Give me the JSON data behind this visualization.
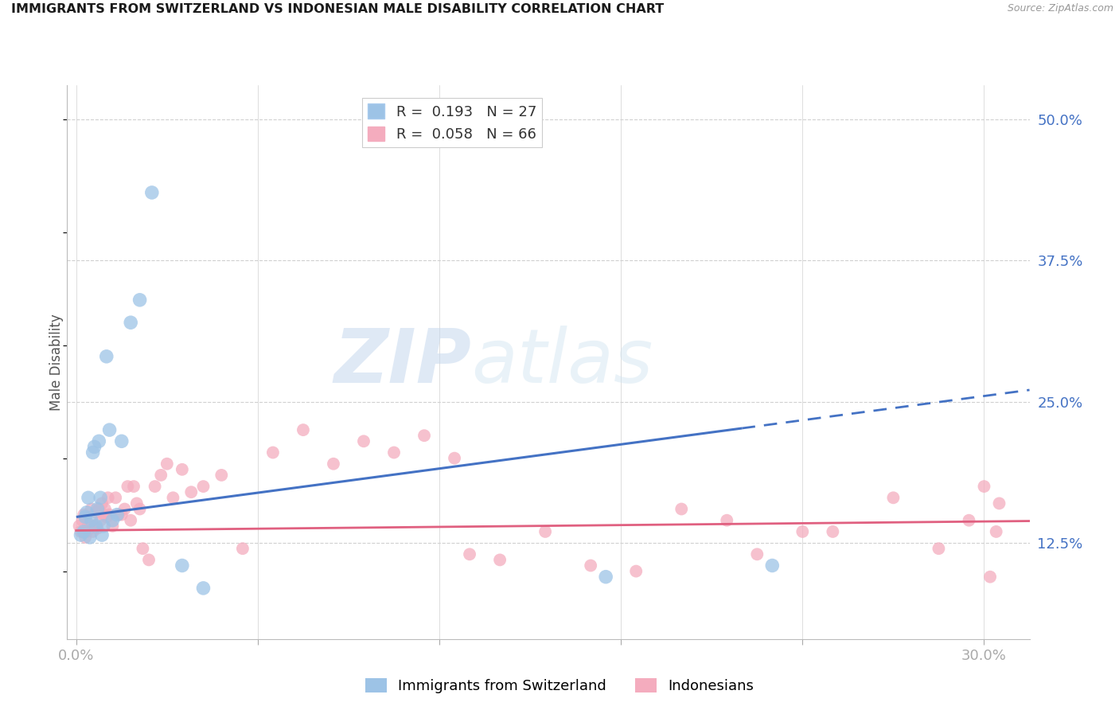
{
  "title": "IMMIGRANTS FROM SWITZERLAND VS INDONESIAN MALE DISABILITY CORRELATION CHART",
  "source": "Source: ZipAtlas.com",
  "ylabel": "Male Disability",
  "x_ticks": [
    0.0,
    6.0,
    12.0,
    18.0,
    24.0,
    30.0
  ],
  "y_ticks_right": [
    12.5,
    25.0,
    37.5,
    50.0
  ],
  "y_min": 4.0,
  "y_max": 53.0,
  "x_min": -0.3,
  "x_max": 31.5,
  "legend_R1": "R =  0.193",
  "legend_N1": "N = 27",
  "legend_R2": "R =  0.058",
  "legend_N2": "N = 66",
  "color_blue": "#9DC3E6",
  "color_blue_line": "#4472C4",
  "color_pink": "#F4ACBE",
  "color_pink_line": "#E06080",
  "color_axis_label": "#4472C4",
  "color_grid": "#D0D0D0",
  "watermark_zip": "ZIP",
  "watermark_atlas": "atlas",
  "blue_line_x0": 0.0,
  "blue_line_y0": 14.8,
  "blue_line_x1": 30.0,
  "blue_line_y1": 25.5,
  "pink_line_x0": 0.0,
  "pink_line_y0": 13.6,
  "pink_line_x1": 30.0,
  "pink_line_y1": 14.4,
  "swiss_x": [
    0.15,
    0.25,
    0.3,
    0.35,
    0.4,
    0.45,
    0.5,
    0.55,
    0.6,
    0.65,
    0.7,
    0.75,
    0.8,
    0.85,
    0.9,
    1.0,
    1.1,
    1.2,
    1.35,
    1.5,
    1.8,
    2.1,
    3.5,
    4.2,
    17.5,
    23.0,
    2.5
  ],
  "swiss_y": [
    13.2,
    13.5,
    14.8,
    15.2,
    16.5,
    13.0,
    14.5,
    20.5,
    21.0,
    14.0,
    15.5,
    21.5,
    16.5,
    13.2,
    14.0,
    29.0,
    22.5,
    14.5,
    15.0,
    21.5,
    32.0,
    34.0,
    10.5,
    8.5,
    9.5,
    10.5,
    43.5
  ],
  "indo_x": [
    0.1,
    0.15,
    0.2,
    0.25,
    0.3,
    0.35,
    0.4,
    0.45,
    0.5,
    0.55,
    0.6,
    0.65,
    0.7,
    0.75,
    0.8,
    0.85,
    0.9,
    0.95,
    1.0,
    1.05,
    1.1,
    1.2,
    1.3,
    1.4,
    1.5,
    1.6,
    1.7,
    1.8,
    1.9,
    2.0,
    2.1,
    2.2,
    2.4,
    2.6,
    2.8,
    3.0,
    3.2,
    3.5,
    3.8,
    4.2,
    4.8,
    5.5,
    6.5,
    7.5,
    8.5,
    9.5,
    10.5,
    11.5,
    12.5,
    13.0,
    14.0,
    15.5,
    17.0,
    18.5,
    20.0,
    21.5,
    22.5,
    24.0,
    25.0,
    27.0,
    28.5,
    29.5,
    30.0,
    30.2,
    30.4,
    30.5
  ],
  "indo_y": [
    14.0,
    13.5,
    14.5,
    15.0,
    13.0,
    13.5,
    14.2,
    13.8,
    15.5,
    13.5,
    14.0,
    15.2,
    13.8,
    15.5,
    14.5,
    16.0,
    15.0,
    15.5,
    14.8,
    16.5,
    15.0,
    14.0,
    16.5,
    15.0,
    15.0,
    15.5,
    17.5,
    14.5,
    17.5,
    16.0,
    15.5,
    12.0,
    11.0,
    17.5,
    18.5,
    19.5,
    16.5,
    19.0,
    17.0,
    17.5,
    18.5,
    12.0,
    20.5,
    22.5,
    19.5,
    21.5,
    20.5,
    22.0,
    20.0,
    11.5,
    11.0,
    13.5,
    10.5,
    10.0,
    15.5,
    14.5,
    11.5,
    13.5,
    13.5,
    16.5,
    12.0,
    14.5,
    17.5,
    9.5,
    13.5,
    16.0
  ]
}
